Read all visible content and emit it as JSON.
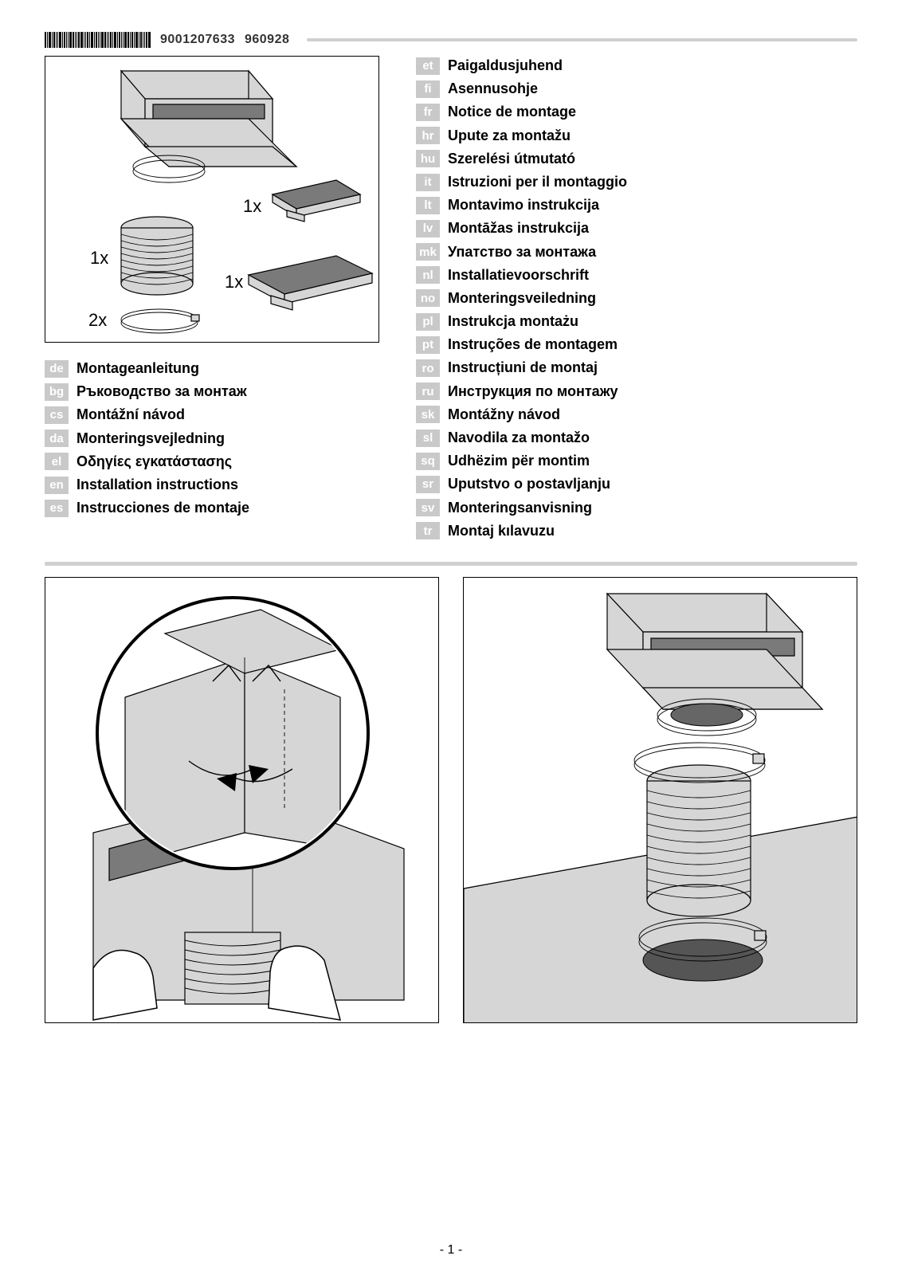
{
  "header": {
    "doc_number_1": "9001207633",
    "doc_number_2": "960928"
  },
  "parts_labels": {
    "bracket_qty": "1x",
    "tube_qty": "1x",
    "clamp_qty": "2x",
    "filter_small_qty": "1x",
    "filter_large_qty": "1x"
  },
  "languages_left": [
    {
      "code": "de",
      "label": "Montageanleitung"
    },
    {
      "code": "bg",
      "label": "Ръководство за монтаж"
    },
    {
      "code": "cs",
      "label": "Montážní návod"
    },
    {
      "code": "da",
      "label": "Monteringsvejledning"
    },
    {
      "code": "el",
      "label": "Οδηγίες εγκατάστασης"
    },
    {
      "code": "en",
      "label": "Installation instructions"
    },
    {
      "code": "es",
      "label": "Instrucciones de montaje"
    }
  ],
  "languages_right": [
    {
      "code": "et",
      "label": "Paigaldusjuhend"
    },
    {
      "code": "fi",
      "label": "Asennusohje"
    },
    {
      "code": "fr",
      "label": "Notice de montage"
    },
    {
      "code": "hr",
      "label": "Upute za montažu"
    },
    {
      "code": "hu",
      "label": "Szerelési útmutató"
    },
    {
      "code": "it",
      "label": "Istruzioni per il montaggio"
    },
    {
      "code": "lt",
      "label": "Montavimo instrukcija"
    },
    {
      "code": "lv",
      "label": "Montāžas instrukcija"
    },
    {
      "code": "mk",
      "label": "Упатство за монтажа"
    },
    {
      "code": "nl",
      "label": "Installatievoorschrift"
    },
    {
      "code": "no",
      "label": "Monteringsveiledning"
    },
    {
      "code": "pl",
      "label": "Instrukcja montażu"
    },
    {
      "code": "pt",
      "label": "Instruções de montagem"
    },
    {
      "code": "ro",
      "label": "Instrucțiuni de montaj"
    },
    {
      "code": "ru",
      "label": "Инструкция по монтажу"
    },
    {
      "code": "sk",
      "label": "Montážny návod"
    },
    {
      "code": "sl",
      "label": "Navodila za montažo"
    },
    {
      "code": "sq",
      "label": "Udhëzim për montim"
    },
    {
      "code": "sr",
      "label": "Uputstvo o postavljanju"
    },
    {
      "code": "sv",
      "label": "Monteringsanvisning"
    },
    {
      "code": "tr",
      "label": "Montaj kılavuzu"
    }
  ],
  "page_number": "- 1 -",
  "colors": {
    "badge_bg": "#c9c9c9",
    "badge_fg": "#ffffff",
    "divider": "#d0d0d0",
    "metal_fill": "#d6d6d6",
    "dark_fill": "#7a7a7a"
  }
}
